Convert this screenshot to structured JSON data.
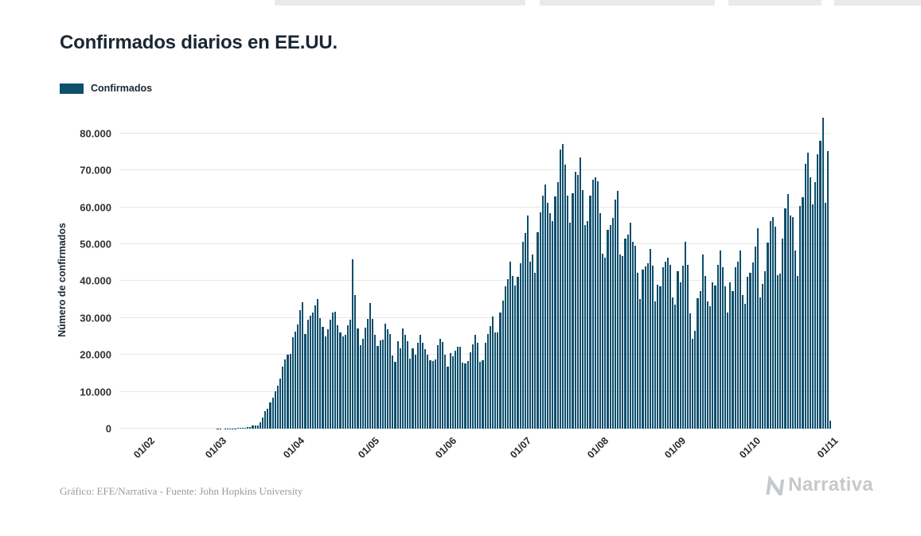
{
  "title": "Confirmados diarios en EE.UU.",
  "legend": {
    "label": "Confirmados",
    "color": "#0d4f6d"
  },
  "footer": {
    "credit": "Gráfico: EFE/Narrativa - Fuente: John Hopkins University"
  },
  "brand": {
    "name": "Narrativa"
  },
  "colors": {
    "bar": "#0d4f6d",
    "gridline": "#e7e7e7",
    "title_text": "#1a2632",
    "credit_text": "#9a9a9a",
    "brand_text": "#c6c9cc"
  },
  "chart_data": {
    "type": "bar",
    "title": "Confirmados diarios en EE.UU.",
    "xlabel": "",
    "ylabel": "Número de confirmados",
    "legend_position": "top-left",
    "grid": "horizontal",
    "bar_color": "#0d4f6d",
    "ylim": [
      0,
      86000
    ],
    "yticks": [
      0,
      10000,
      20000,
      30000,
      40000,
      50000,
      60000,
      70000,
      80000
    ],
    "ytick_labels": [
      "0",
      "10.000",
      "20.000",
      "30.000",
      "40.000",
      "50.000",
      "60.000",
      "70.000",
      "80.000"
    ],
    "x_start_date": "2020-01-22",
    "frequency": "daily",
    "xtick_labels": [
      "01/02",
      "01/03",
      "01/04",
      "01/05",
      "01/06",
      "01/07",
      "01/08",
      "01/09",
      "01/10",
      "01/11"
    ],
    "xtick_day_indices": [
      10,
      39,
      70,
      100,
      131,
      161,
      192,
      223,
      253,
      284
    ],
    "series": [
      {
        "name": "Confirmados",
        "values": [
          1,
          0,
          1,
          0,
          3,
          0,
          0,
          0,
          2,
          1,
          1,
          0,
          2,
          0,
          0,
          0,
          0,
          0,
          1,
          0,
          1,
          1,
          0,
          0,
          0,
          1,
          0,
          0,
          2,
          0,
          1,
          0,
          0,
          0,
          0,
          0,
          6,
          2,
          7,
          24,
          20,
          14,
          22,
          34,
          74,
          105,
          95,
          121,
          200,
          271,
          287,
          351,
          511,
          777,
          823,
          887,
          1766,
          2988,
          4835,
          5374,
          7123,
          8459,
          10189,
          11656,
          13663,
          16797,
          18695,
          19979,
          20353,
          24742,
          26341,
          28219,
          32105,
          34196,
          25717,
          29595,
          30613,
          31533,
          33323,
          35098,
          29861,
          27620,
          25023,
          26922,
          29468,
          31451,
          31715,
          28065,
          25995,
          24995,
          25434,
          28065,
          29591,
          45851,
          36188,
          27143,
          22541,
          24385,
          27327,
          29763,
          33955,
          29744,
          25524,
          22335,
          23841,
          24128,
          28369,
          26906,
          25621,
          19731,
          18117,
          23792,
          21712,
          27143,
          25508,
          23782,
          18873,
          21841,
          19970,
          23285,
          25434,
          23290,
          21614,
          20007,
          18611,
          18263,
          18721,
          22577,
          24266,
          23553,
          20007,
          16868,
          20461,
          19680,
          21140,
          22176,
          22302,
          17919,
          17598,
          18387,
          20801,
          22834,
          25540,
          23356,
          18022,
          18577,
          23351,
          25555,
          27762,
          30338,
          26176,
          26079,
          31402,
          34720,
          38672,
          40588,
          45255,
          41390,
          38800,
          41075,
          44734,
          50655,
          53069,
          57683,
          45254,
          47151,
          42336,
          53243,
          58601,
          63200,
          66281,
          61198,
          58349,
          56203,
          62879,
          66906,
          75687,
          77255,
          71558,
          63201,
          55824,
          63907,
          69641,
          68813,
          73400,
          64582,
          55187,
          56336,
          63249,
          67404,
          68032,
          67023,
          58429,
          47511,
          46321,
          53847,
          55148,
          57120,
          62042,
          64500,
          47136,
          46754,
          51443,
          52516,
          55911,
          50736,
          49536,
          42303,
          35112,
          43091,
          44023,
          44939,
          48693,
          44093,
          34567,
          38986,
          38612,
          43711,
          45341,
          46393,
          44498,
          35506,
          33534,
          42786,
          39705,
          44112,
          50641,
          44435,
          31363,
          24257,
          26435,
          35286,
          37372,
          47192,
          41316,
          34466,
          33103,
          39687,
          38771,
          44374,
          48370,
          43795,
          38619,
          31521,
          39764,
          37209,
          43789,
          45277,
          48210,
          36180,
          33871,
          41159,
          42184,
          44969,
          49437,
          54321,
          35462,
          39149,
          42766,
          50427,
          56191,
          57420,
          54684,
          41653,
          41986,
          51421,
          59751,
          63610,
          57761,
          57420,
          48210,
          41464,
          60412,
          62812,
          71671,
          74898,
          68012,
          60789,
          66798,
          74379,
          78012,
          84218,
          61121,
          75316,
          2104
        ]
      }
    ]
  }
}
